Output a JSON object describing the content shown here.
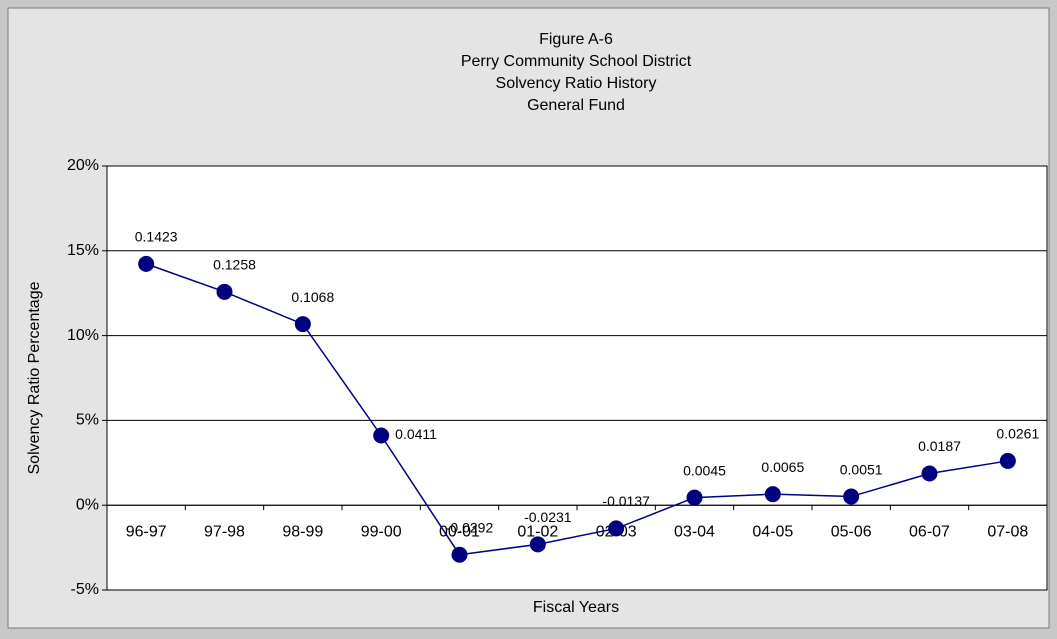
{
  "chart_data": {
    "type": "line",
    "title": [
      "Figure A-6",
      "Perry Community School District",
      "Solvency Ratio History",
      "General Fund"
    ],
    "x_label": "Fiscal Years",
    "y_label": "Solvency Ratio Percentage",
    "categories": [
      "96-97",
      "97-98",
      "98-99",
      "99-00",
      "00-01",
      "01-02",
      "02-03",
      "03-04",
      "04-05",
      "05-06",
      "06-07",
      "07-08"
    ],
    "series": [
      {
        "color": "#000080",
        "values": [
          0.1423,
          0.1258,
          0.1068,
          0.0411,
          -0.0292,
          -0.0231,
          -0.0137,
          0.0045,
          0.0065,
          0.0051,
          0.0187,
          0.0261
        ]
      }
    ],
    "ylim": [
      -0.05,
      0.2
    ],
    "yticks": [
      {
        "value": -0.05,
        "label": "-5%"
      },
      {
        "value": 0,
        "label": "0%"
      },
      {
        "value": 0.05,
        "label": "5%"
      },
      {
        "value": 0.1,
        "label": "10%"
      },
      {
        "value": 0.15,
        "label": "15%"
      },
      {
        "value": 0.2,
        "label": "20%"
      }
    ],
    "grid": true
  }
}
